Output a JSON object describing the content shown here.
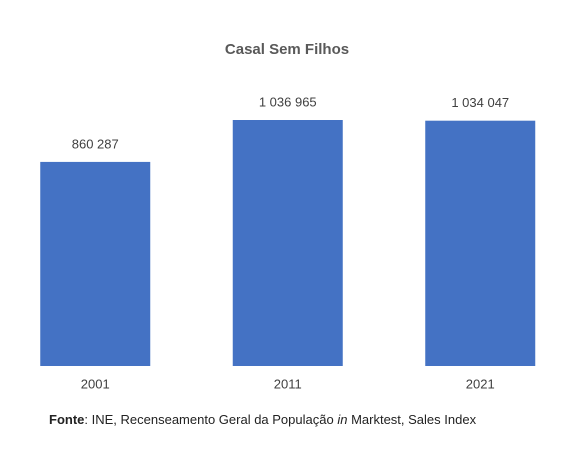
{
  "chart_data": {
    "type": "bar",
    "title": "Casal Sem Filhos",
    "categories": [
      "2001",
      "2011",
      "2021"
    ],
    "values": [
      860287,
      1036965,
      1034047
    ],
    "value_labels": [
      "860 287",
      "1 036 965",
      "1 034 047"
    ],
    "color": "#4472c4"
  },
  "source": {
    "label": "Fonte",
    "text_1": ": INE, Recenseamento Geral da População ",
    "emphasis": "in",
    "text_2": " Marktest, Sales Index"
  }
}
